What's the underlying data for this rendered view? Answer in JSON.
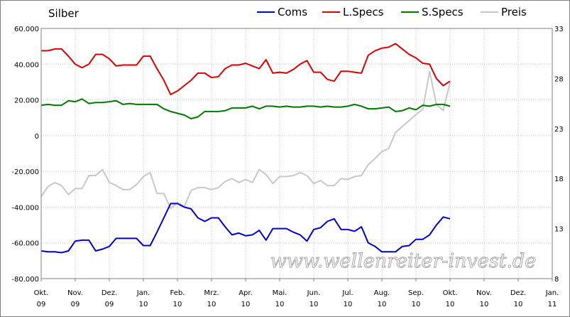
{
  "chart_data": {
    "type": "line",
    "title": "Silber",
    "watermark": "www.wellenreiter-invest.de",
    "grid": true,
    "legend_placement": "top",
    "y_left": {
      "min": -80000,
      "max": 60000,
      "step": 20000,
      "tick_labels": [
        "60.000",
        "40.000",
        "20.000",
        "0",
        "-20.000",
        "-40.000",
        "-60.000",
        "-80.000"
      ]
    },
    "y_right": {
      "min": 8,
      "max": 33,
      "ticks": [
        33,
        28,
        23,
        18,
        13,
        8
      ],
      "tick_labels": [
        "33",
        "28",
        "23",
        "18",
        "13",
        "8"
      ]
    },
    "x_ticks": [
      {
        "m": "Okt.",
        "y": "09"
      },
      {
        "m": "Nov.",
        "y": "09"
      },
      {
        "m": "Dez.",
        "y": "09"
      },
      {
        "m": "Jan.",
        "y": "10"
      },
      {
        "m": "Feb.",
        "y": "10"
      },
      {
        "m": "Mrz.",
        "y": "10"
      },
      {
        "m": "Apr.",
        "y": "10"
      },
      {
        "m": "Mai.",
        "y": "10"
      },
      {
        "m": "Jun.",
        "y": "10"
      },
      {
        "m": "Jul.",
        "y": "10"
      },
      {
        "m": "Aug.",
        "y": "10"
      },
      {
        "m": "Sep.",
        "y": "10"
      },
      {
        "m": "Okt.",
        "y": "10"
      },
      {
        "m": "Nov.",
        "y": "10"
      },
      {
        "m": "Dez.",
        "y": "10"
      },
      {
        "m": "Jan.",
        "y": "11"
      }
    ],
    "series": [
      {
        "name": "Coms",
        "color": "#0000cc",
        "axis": "left",
        "points": [
          [
            0,
            -64500
          ],
          [
            0.2,
            -65000
          ],
          [
            0.4,
            -65000
          ],
          [
            0.6,
            -65500
          ],
          [
            0.8,
            -64500
          ],
          [
            1.0,
            -59000
          ],
          [
            1.2,
            -58500
          ],
          [
            1.4,
            -58500
          ],
          [
            1.6,
            -64500
          ],
          [
            1.8,
            -63500
          ],
          [
            2.0,
            -62000
          ],
          [
            2.2,
            -57500
          ],
          [
            2.4,
            -57500
          ],
          [
            2.6,
            -57500
          ],
          [
            2.8,
            -57500
          ],
          [
            3.0,
            -61500
          ],
          [
            3.2,
            -61500
          ],
          [
            3.4,
            -54000
          ],
          [
            3.6,
            -46000
          ],
          [
            3.8,
            -38000
          ],
          [
            4.0,
            -38000
          ],
          [
            4.2,
            -40000
          ],
          [
            4.4,
            -41000
          ],
          [
            4.6,
            -46000
          ],
          [
            4.8,
            -48000
          ],
          [
            5.0,
            -46000
          ],
          [
            5.2,
            -46000
          ],
          [
            5.4,
            -51000
          ],
          [
            5.6,
            -55500
          ],
          [
            5.8,
            -54500
          ],
          [
            6.0,
            -56000
          ],
          [
            6.2,
            -55500
          ],
          [
            6.4,
            -53000
          ],
          [
            6.6,
            -58500
          ],
          [
            6.8,
            -52000
          ],
          [
            7.0,
            -52000
          ],
          [
            7.2,
            -52000
          ],
          [
            7.4,
            -54000
          ],
          [
            7.6,
            -55500
          ],
          [
            7.8,
            -59000
          ],
          [
            8.0,
            -52500
          ],
          [
            8.2,
            -51500
          ],
          [
            8.4,
            -48000
          ],
          [
            8.6,
            -46500
          ],
          [
            8.8,
            -52500
          ],
          [
            9.0,
            -52500
          ],
          [
            9.2,
            -53500
          ],
          [
            9.4,
            -51000
          ],
          [
            9.6,
            -60000
          ],
          [
            9.8,
            -62000
          ],
          [
            10.0,
            -65000
          ],
          [
            10.2,
            -65000
          ],
          [
            10.4,
            -65000
          ],
          [
            10.6,
            -62000
          ],
          [
            10.8,
            -61500
          ],
          [
            11.0,
            -58000
          ],
          [
            11.2,
            -58000
          ],
          [
            11.4,
            -55500
          ],
          [
            11.6,
            -50000
          ],
          [
            11.8,
            -45500
          ],
          [
            12.0,
            -46500
          ]
        ]
      },
      {
        "name": "L.Specs",
        "color": "#dd0000",
        "axis": "left",
        "points": [
          [
            0,
            47500
          ],
          [
            0.2,
            47500
          ],
          [
            0.4,
            48500
          ],
          [
            0.6,
            48500
          ],
          [
            0.8,
            44500
          ],
          [
            1.0,
            40000
          ],
          [
            1.2,
            38000
          ],
          [
            1.4,
            40000
          ],
          [
            1.6,
            45500
          ],
          [
            1.8,
            45500
          ],
          [
            2.0,
            43000
          ],
          [
            2.2,
            39000
          ],
          [
            2.4,
            39500
          ],
          [
            2.6,
            39500
          ],
          [
            2.8,
            39500
          ],
          [
            3.0,
            44500
          ],
          [
            3.2,
            44500
          ],
          [
            3.4,
            37500
          ],
          [
            3.6,
            31000
          ],
          [
            3.8,
            23000
          ],
          [
            4.0,
            25000
          ],
          [
            4.2,
            28000
          ],
          [
            4.4,
            31000
          ],
          [
            4.6,
            35000
          ],
          [
            4.8,
            35000
          ],
          [
            5.0,
            32500
          ],
          [
            5.2,
            33000
          ],
          [
            5.4,
            37500
          ],
          [
            5.6,
            39500
          ],
          [
            5.8,
            39500
          ],
          [
            6.0,
            40500
          ],
          [
            6.2,
            39000
          ],
          [
            6.4,
            37500
          ],
          [
            6.6,
            42500
          ],
          [
            6.8,
            35000
          ],
          [
            7.0,
            35500
          ],
          [
            7.2,
            35000
          ],
          [
            7.4,
            37000
          ],
          [
            7.6,
            40000
          ],
          [
            7.8,
            42000
          ],
          [
            8.0,
            35500
          ],
          [
            8.2,
            35500
          ],
          [
            8.4,
            31500
          ],
          [
            8.6,
            30500
          ],
          [
            8.8,
            36000
          ],
          [
            9.0,
            36000
          ],
          [
            9.2,
            35500
          ],
          [
            9.4,
            35000
          ],
          [
            9.6,
            45000
          ],
          [
            9.8,
            47500
          ],
          [
            10.0,
            49000
          ],
          [
            10.2,
            49500
          ],
          [
            10.4,
            51500
          ],
          [
            10.6,
            48500
          ],
          [
            10.8,
            45500
          ],
          [
            11.0,
            43500
          ],
          [
            11.2,
            40500
          ],
          [
            11.4,
            40000
          ],
          [
            11.6,
            32000
          ],
          [
            11.8,
            28000
          ],
          [
            12.0,
            30500
          ]
        ]
      },
      {
        "name": "S.Specs",
        "color": "#007700",
        "axis": "left",
        "points": [
          [
            0,
            17000
          ],
          [
            0.2,
            17500
          ],
          [
            0.4,
            17000
          ],
          [
            0.6,
            17000
          ],
          [
            0.8,
            19500
          ],
          [
            1.0,
            19000
          ],
          [
            1.2,
            20500
          ],
          [
            1.4,
            18000
          ],
          [
            1.6,
            18500
          ],
          [
            1.8,
            18500
          ],
          [
            2.0,
            19000
          ],
          [
            2.2,
            19500
          ],
          [
            2.4,
            17500
          ],
          [
            2.6,
            18000
          ],
          [
            2.8,
            17500
          ],
          [
            3.0,
            17500
          ],
          [
            3.2,
            17500
          ],
          [
            3.4,
            17500
          ],
          [
            3.6,
            15000
          ],
          [
            3.8,
            13500
          ],
          [
            4.0,
            12500
          ],
          [
            4.2,
            11500
          ],
          [
            4.4,
            9500
          ],
          [
            4.6,
            10500
          ],
          [
            4.8,
            13500
          ],
          [
            5.0,
            13500
          ],
          [
            5.2,
            13500
          ],
          [
            5.4,
            14000
          ],
          [
            5.6,
            15500
          ],
          [
            5.8,
            15500
          ],
          [
            6.0,
            15500
          ],
          [
            6.2,
            16500
          ],
          [
            6.4,
            15000
          ],
          [
            6.6,
            16500
          ],
          [
            6.8,
            16500
          ],
          [
            7.0,
            16000
          ],
          [
            7.2,
            16500
          ],
          [
            7.4,
            16000
          ],
          [
            7.6,
            16000
          ],
          [
            7.8,
            16500
          ],
          [
            8.0,
            16500
          ],
          [
            8.2,
            16000
          ],
          [
            8.4,
            16500
          ],
          [
            8.6,
            16000
          ],
          [
            8.8,
            16000
          ],
          [
            9.0,
            16500
          ],
          [
            9.2,
            17500
          ],
          [
            9.4,
            16500
          ],
          [
            9.6,
            15000
          ],
          [
            9.8,
            15000
          ],
          [
            10.0,
            15500
          ],
          [
            10.2,
            16000
          ],
          [
            10.4,
            13500
          ],
          [
            10.6,
            14000
          ],
          [
            10.8,
            15500
          ],
          [
            11.0,
            14500
          ],
          [
            11.2,
            17000
          ],
          [
            11.4,
            16500
          ],
          [
            11.6,
            17500
          ],
          [
            11.8,
            17500
          ],
          [
            12.0,
            16500
          ]
        ]
      },
      {
        "name": "Preis",
        "color": "#c8c8c8",
        "axis": "right",
        "points": [
          [
            0,
            16.2
          ],
          [
            0.2,
            17.2
          ],
          [
            0.4,
            17.6
          ],
          [
            0.6,
            17.3
          ],
          [
            0.8,
            16.4
          ],
          [
            1.0,
            17.0
          ],
          [
            1.2,
            17.0
          ],
          [
            1.4,
            18.3
          ],
          [
            1.6,
            18.3
          ],
          [
            1.8,
            18.9
          ],
          [
            2.0,
            17.6
          ],
          [
            2.2,
            17.3
          ],
          [
            2.4,
            16.9
          ],
          [
            2.6,
            16.9
          ],
          [
            2.8,
            17.4
          ],
          [
            3.0,
            18.2
          ],
          [
            3.2,
            18.6
          ],
          [
            3.4,
            16.5
          ],
          [
            3.6,
            16.5
          ],
          [
            3.8,
            15.0
          ],
          [
            4.0,
            15.6
          ],
          [
            4.2,
            15.2
          ],
          [
            4.4,
            16.8
          ],
          [
            4.6,
            17.1
          ],
          [
            4.8,
            17.1
          ],
          [
            5.0,
            16.9
          ],
          [
            5.2,
            17.1
          ],
          [
            5.4,
            17.7
          ],
          [
            5.6,
            18.0
          ],
          [
            5.8,
            17.6
          ],
          [
            6.0,
            17.9
          ],
          [
            6.2,
            17.6
          ],
          [
            6.4,
            18.9
          ],
          [
            6.6,
            18.4
          ],
          [
            6.8,
            17.5
          ],
          [
            7.0,
            18.2
          ],
          [
            7.2,
            18.2
          ],
          [
            7.4,
            18.3
          ],
          [
            7.6,
            18.6
          ],
          [
            7.8,
            18.3
          ],
          [
            8.0,
            17.5
          ],
          [
            8.2,
            17.8
          ],
          [
            8.4,
            17.3
          ],
          [
            8.6,
            17.3
          ],
          [
            8.8,
            18.0
          ],
          [
            9.0,
            17.9
          ],
          [
            9.2,
            18.2
          ],
          [
            9.4,
            18.3
          ],
          [
            9.6,
            19.4
          ],
          [
            9.8,
            20.0
          ],
          [
            10.0,
            20.7
          ],
          [
            10.2,
            21.0
          ],
          [
            10.4,
            22.6
          ],
          [
            10.6,
            23.2
          ],
          [
            10.8,
            23.8
          ],
          [
            11.0,
            24.4
          ],
          [
            11.2,
            24.9
          ],
          [
            11.4,
            28.7
          ],
          [
            11.6,
            25.4
          ],
          [
            11.8,
            24.8
          ],
          [
            12.0,
            27.6
          ]
        ]
      }
    ]
  }
}
